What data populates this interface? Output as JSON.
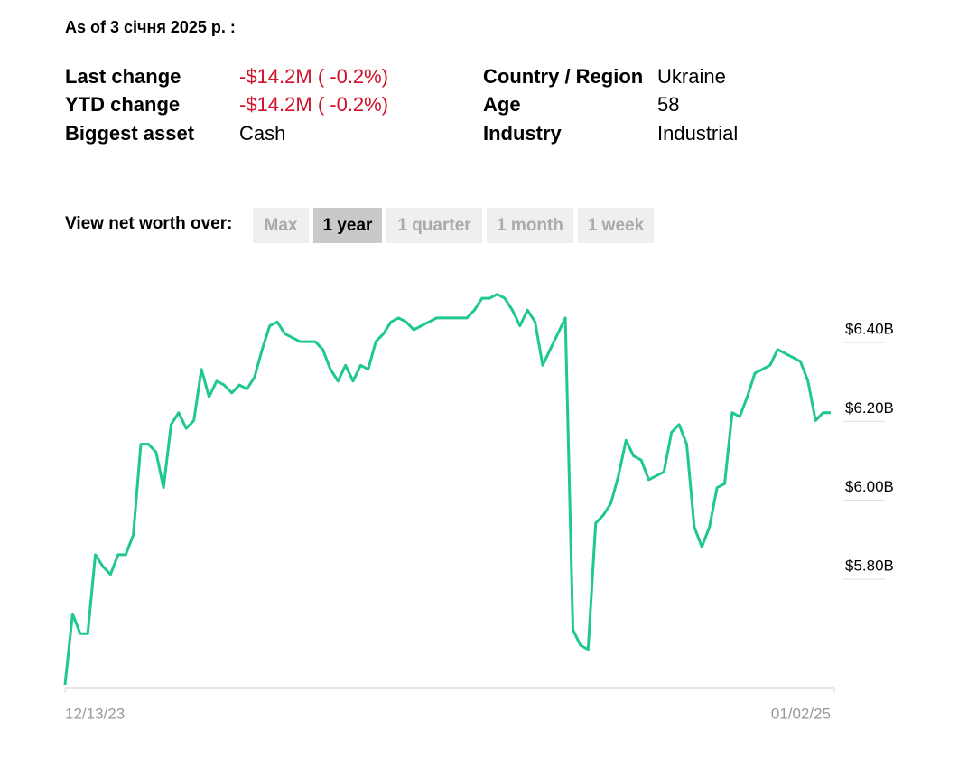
{
  "header": "As of 3 січня 2025 р. :",
  "stats": {
    "left": [
      [
        "Last change",
        "-$14.2M ( -0.2%)"
      ],
      [
        "YTD change",
        "-$14.2M ( -0.2%)"
      ],
      [
        "Biggest asset",
        "Cash"
      ]
    ],
    "right": [
      [
        "Country / Region",
        "Ukraine"
      ],
      [
        "Age",
        "58"
      ],
      [
        "Industry",
        "Industrial"
      ]
    ],
    "negative_color": "#d0112b"
  },
  "range_selector": {
    "label": "View net worth over:",
    "options": [
      "Max",
      "1 year",
      "1 quarter",
      "1 month",
      "1 week"
    ],
    "selected": 1
  },
  "chart_data": {
    "type": "line",
    "categories": [
      "12/13/23",
      null,
      null,
      null,
      null,
      null,
      null,
      null,
      null,
      null,
      null,
      null,
      null,
      null,
      null,
      null,
      null,
      null,
      null,
      null,
      null,
      null,
      null,
      null,
      null,
      null,
      null,
      null,
      null,
      null,
      null,
      null,
      null,
      null,
      null,
      null,
      null,
      null,
      null,
      null,
      null,
      null,
      null,
      null,
      null,
      null,
      null,
      null,
      null,
      null,
      null,
      null,
      null,
      null,
      null,
      null,
      null,
      null,
      null,
      null,
      null,
      null,
      null,
      null,
      null,
      null,
      null,
      null,
      null,
      null,
      null,
      null,
      null,
      null,
      null,
      null,
      null,
      null,
      null,
      null,
      null,
      null,
      null,
      null,
      null,
      null,
      null,
      null,
      null,
      null,
      null,
      null,
      null,
      null,
      null,
      null,
      null,
      null,
      null,
      null,
      null,
      "01/02/25"
    ],
    "series": [
      {
        "color": "#1fc88b",
        "values": [
          5.5,
          5.68,
          5.63,
          5.63,
          5.83,
          5.8,
          5.78,
          5.83,
          5.83,
          5.88,
          6.11,
          6.11,
          6.09,
          6.0,
          6.16,
          6.19,
          6.15,
          6.17,
          6.3,
          6.23,
          6.27,
          6.26,
          6.24,
          6.26,
          6.25,
          6.28,
          6.35,
          6.41,
          6.42,
          6.39,
          6.38,
          6.37,
          6.37,
          6.37,
          6.35,
          6.3,
          6.27,
          6.31,
          6.27,
          6.31,
          6.3,
          6.37,
          6.39,
          6.42,
          6.43,
          6.42,
          6.4,
          6.41,
          6.42,
          6.43,
          6.43,
          6.43,
          6.43,
          6.43,
          6.45,
          6.48,
          6.48,
          6.49,
          6.48,
          6.45,
          6.41,
          6.45,
          6.42,
          6.31,
          6.35,
          6.39,
          6.43,
          5.64,
          5.6,
          5.59,
          5.91,
          5.93,
          5.96,
          6.03,
          6.12,
          6.08,
          6.07,
          6.02,
          6.03,
          6.04,
          6.14,
          6.16,
          6.11,
          5.9,
          5.85,
          5.9,
          6.0,
          6.01,
          6.19,
          6.18,
          6.23,
          6.29,
          6.3,
          6.31,
          6.35,
          6.34,
          6.33,
          6.32,
          6.27,
          6.17,
          6.19,
          6.19
        ]
      }
    ],
    "ylim": [
      5.5,
      6.55
    ],
    "yticks": [
      {
        "value": 5.8,
        "label": "$5.80B"
      },
      {
        "value": 6.0,
        "label": "$6.00B"
      },
      {
        "value": 6.2,
        "label": "$6.20B"
      },
      {
        "value": 6.4,
        "label": "$6.40B"
      }
    ],
    "grid": false
  }
}
